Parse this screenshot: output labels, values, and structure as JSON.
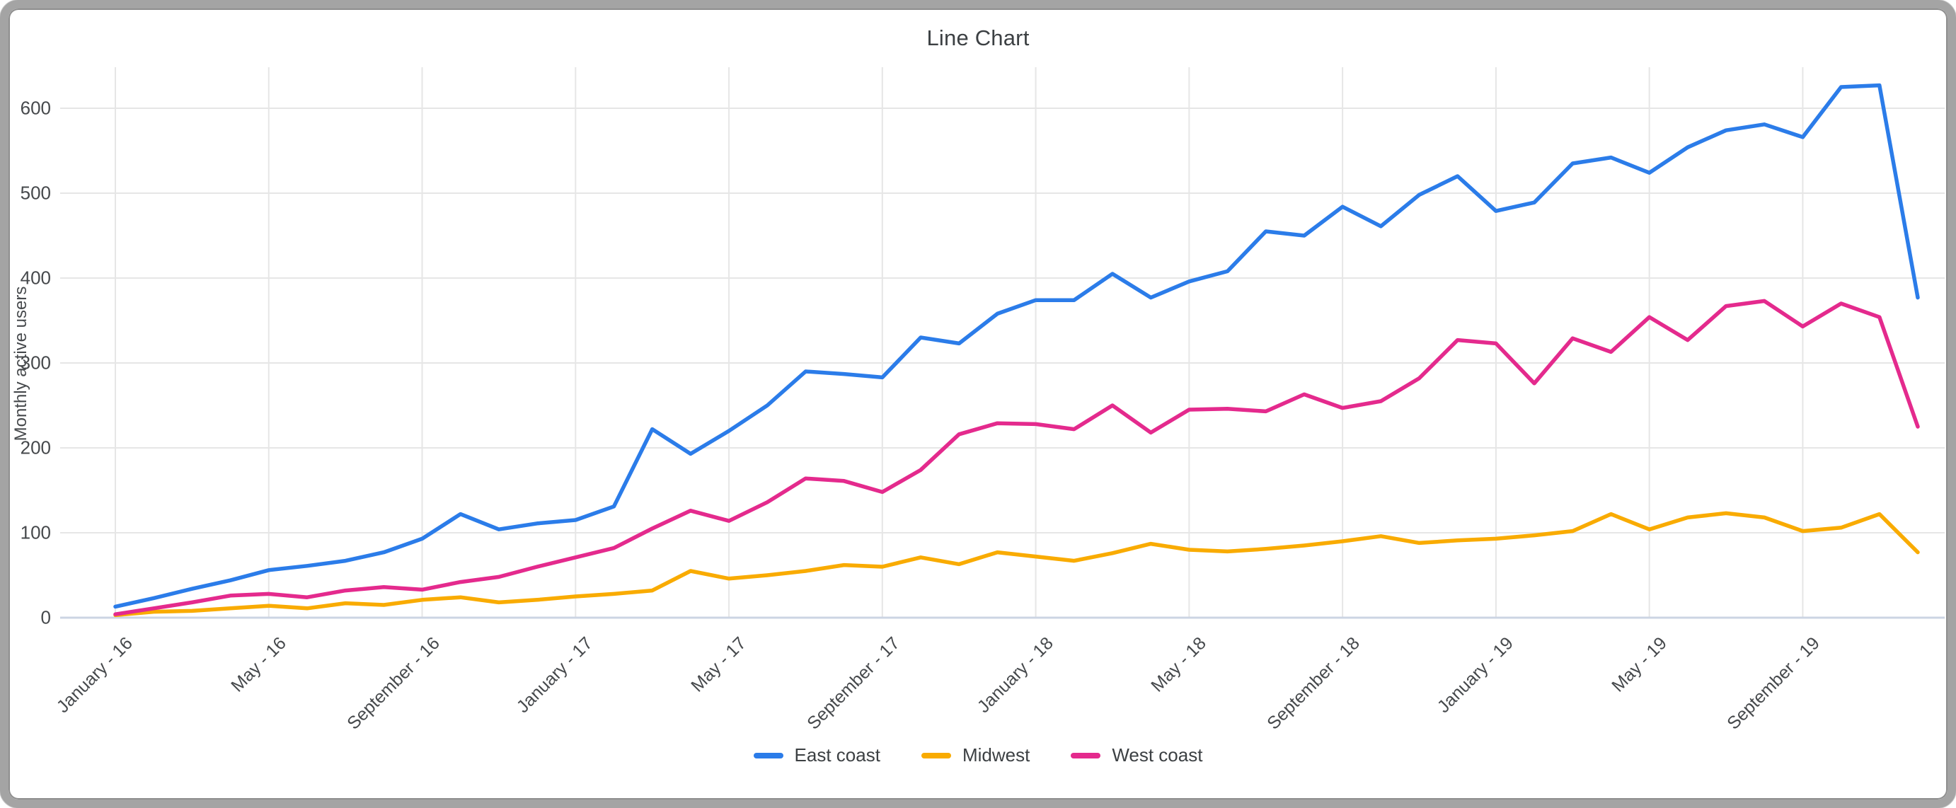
{
  "window": {
    "title": "Line Chart"
  },
  "chart_data": {
    "type": "line",
    "title": "Line Chart",
    "xlabel": "",
    "ylabel": "Monthly active users",
    "ylim": [
      0,
      600
    ],
    "yticks": [
      0,
      100,
      200,
      300,
      400,
      500,
      600
    ],
    "grid": true,
    "legend_position": "bottom",
    "x_unit": "month",
    "x_range": [
      "January - 16",
      "December - 19"
    ],
    "x_tick_positions": [
      0,
      4,
      8,
      12,
      16,
      20,
      24,
      28,
      32,
      36,
      40,
      44
    ],
    "x_tick_labels": [
      "January - 16",
      "May - 16",
      "September - 16",
      "January - 17",
      "May - 17",
      "September - 17",
      "January - 18",
      "May - 18",
      "September - 18",
      "January - 19",
      "May - 19",
      "September - 19"
    ],
    "series": [
      {
        "name": "East coast",
        "color": "#2b7ce9",
        "values": [
          13,
          23,
          34,
          44,
          56,
          61,
          67,
          77,
          93,
          122,
          104,
          111,
          115,
          131,
          222,
          193,
          220,
          250,
          290,
          287,
          283,
          330,
          323,
          358,
          374,
          374,
          405,
          377,
          396,
          408,
          455,
          450,
          484,
          461,
          498,
          520,
          479,
          489,
          535,
          542,
          524,
          554,
          574,
          581,
          566,
          625,
          627,
          377
        ]
      },
      {
        "name": "Midwest",
        "color": "#f9ab00",
        "values": [
          3,
          7,
          8,
          11,
          14,
          11,
          17,
          15,
          21,
          24,
          18,
          21,
          25,
          28,
          32,
          55,
          46,
          50,
          55,
          62,
          60,
          71,
          63,
          77,
          72,
          67,
          76,
          87,
          80,
          78,
          81,
          85,
          90,
          96,
          88,
          91,
          93,
          97,
          102,
          122,
          104,
          118,
          123,
          118,
          102,
          106,
          122,
          77
        ]
      },
      {
        "name": "West coast",
        "color": "#e42a8d",
        "values": [
          4,
          11,
          18,
          26,
          28,
          24,
          32,
          36,
          33,
          42,
          48,
          60,
          71,
          82,
          105,
          126,
          114,
          136,
          164,
          161,
          148,
          174,
          216,
          229,
          228,
          222,
          250,
          218,
          245,
          246,
          243,
          263,
          247,
          255,
          282,
          327,
          323,
          276,
          329,
          313,
          354,
          327,
          367,
          373,
          343,
          370,
          354,
          225
        ]
      }
    ],
    "style": {
      "gridline_color": "#e6e6e6",
      "baseline_color": "#ccd4e3",
      "title_color": "#3c4043",
      "tick_label_color": "#46494c",
      "line_width": 5.5
    }
  }
}
